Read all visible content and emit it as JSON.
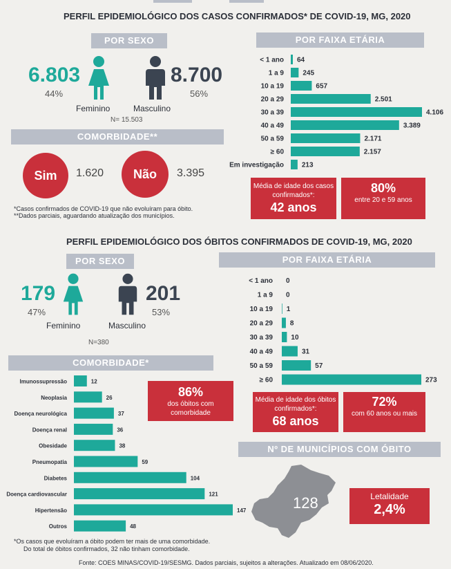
{
  "colors": {
    "teal": "#1ea99a",
    "navy": "#3b4451",
    "red": "#c9303b",
    "header": "#b9bec8"
  },
  "cases": {
    "title": "PERFIL EPIDEMIOLÓGICO DOS CASOS CONFIRMADOS* DE COVID-19, MG, 2020",
    "por_sexo": {
      "header": "POR SEXO",
      "female_count": "6.803",
      "female_pct": "44%",
      "female_label": "Feminino",
      "male_count": "8.700",
      "male_pct": "56%",
      "male_label": "Masculino",
      "n": "N= 15.503"
    },
    "comorbidade": {
      "header": "COMORBIDADE**",
      "sim_label": "Sim",
      "sim_value": "1.620",
      "nao_label": "Não",
      "nao_value": "3.395"
    },
    "footnotes": [
      "*Casos confirmados de COVID-19 que não evoluíram para óbito.",
      "**Dados parciais, aguardando atualização dos municípios."
    ],
    "faixa_header": "POR FAIXA ETÁRIA",
    "media_box": {
      "text": "Média de idade dos casos confirmados*:",
      "value": "42 anos"
    },
    "pct_box": {
      "value": "80%",
      "text": "entre 20 e 59 anos"
    }
  },
  "deaths": {
    "title": "PERFIL EPIDEMIOLÓGICO DOS ÓBITOS CONFIRMADOS DE COVID-19, MG, 2020",
    "por_sexo": {
      "header": "POR SEXO",
      "female_count": "179",
      "female_pct": "47%",
      "female_label": "Feminino",
      "male_count": "201",
      "male_pct": "53%",
      "male_label": "Masculino",
      "n": "N=380"
    },
    "faixa_header": "POR FAIXA ETÁRIA",
    "comorbidade_header": "COMORBIDADE*",
    "comorb_box": {
      "value": "86%",
      "text": "dos óbitos com comorbidade"
    },
    "media_box": {
      "text": "Média de idade dos óbitos confirmados*:",
      "value": "68 anos"
    },
    "pct_box": {
      "value": "72%",
      "text": "com 60 anos ou mais"
    },
    "municipios": {
      "header": "Nº DE MUNICÍPIOS COM ÓBITO",
      "value": "128"
    },
    "letalidade": {
      "label": "Letalidade",
      "value": "2,4%"
    },
    "footnotes": [
      "*Os casos que evoluíram a óbito podem ter mais de uma comorbidade.",
      "Do total de óbitos confirmados, 32 não tinham comorbidade."
    ]
  },
  "source": "Fonte: COES MINAS/COVID-19/SESMG. Dados parciais, sujeitos a alterações. Atualizado em 08/06/2020.",
  "chart_data": [
    {
      "type": "bar",
      "orientation": "horizontal",
      "title": "POR FAIXA ETÁRIA",
      "categories": [
        "< 1 ano",
        "1 a 9",
        "10 a 19",
        "20 a 29",
        "30 a 39",
        "40 a 49",
        "50 a 59",
        "≥ 60",
        "Em investigação"
      ],
      "values": [
        64,
        245,
        657,
        2501,
        4106,
        3389,
        2171,
        2157,
        213
      ],
      "labels": [
        "64",
        "245",
        "657",
        "2.501",
        "4.106",
        "3.389",
        "2.171",
        "2.157",
        "213"
      ],
      "xlim": [
        0,
        4106
      ]
    },
    {
      "type": "bar",
      "orientation": "horizontal",
      "title": "POR FAIXA ETÁRIA",
      "categories": [
        "< 1 ano",
        "1 a 9",
        "10 a 19",
        "20 a 29",
        "30 a 39",
        "40 a 49",
        "50 a 59",
        "≥ 60"
      ],
      "values": [
        0,
        0,
        1,
        8,
        10,
        31,
        57,
        273
      ],
      "labels": [
        "0",
        "0",
        "1",
        "8",
        "10",
        "31",
        "57",
        "273"
      ],
      "xlim": [
        0,
        273
      ]
    },
    {
      "type": "bar",
      "orientation": "horizontal",
      "title": "COMORBIDADE*",
      "categories": [
        "Imunossupressão",
        "Neoplasia",
        "Doença neurológica",
        "Doença renal",
        "Obesidade",
        "Pneumopatia",
        "Diabetes",
        "Doença cardiovascular",
        "Hipertensão",
        "Outros"
      ],
      "values": [
        12,
        26,
        37,
        36,
        38,
        59,
        104,
        121,
        147,
        48
      ],
      "labels": [
        "12",
        "26",
        "37",
        "36",
        "38",
        "59",
        "104",
        "121",
        "147",
        "48"
      ],
      "xlim": [
        0,
        147
      ]
    }
  ]
}
